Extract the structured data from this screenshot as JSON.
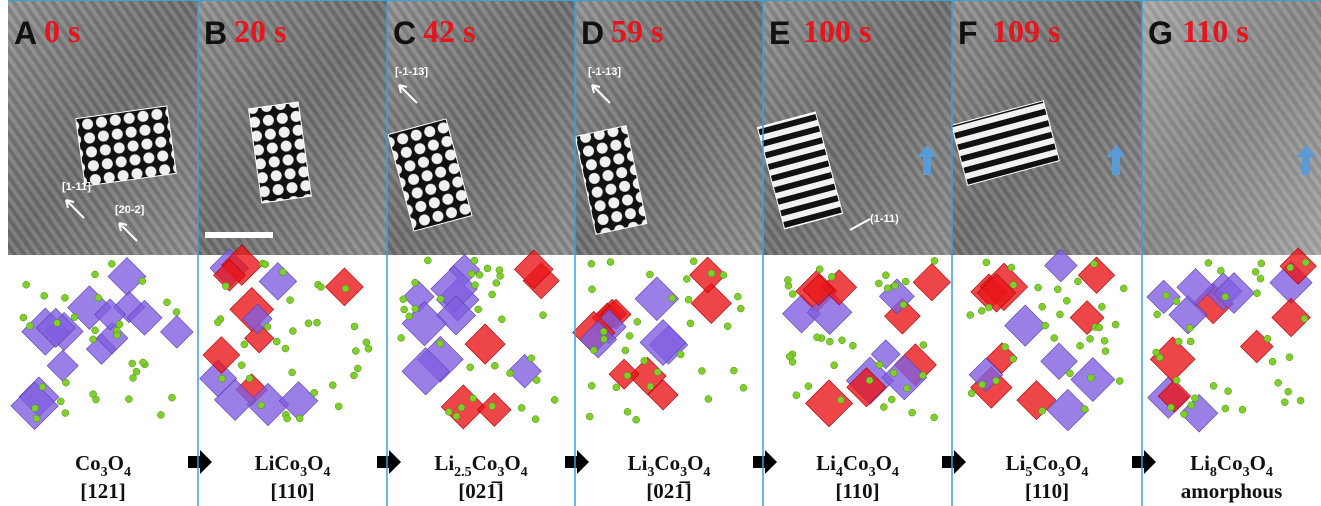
{
  "panels": [
    {
      "letter": "A",
      "time": "0 s",
      "annotations": [
        "[1-11]",
        "[20-2]"
      ],
      "formula": [
        "Co",
        "3",
        "O",
        "4"
      ],
      "direction": "[121]"
    },
    {
      "letter": "B",
      "time": "20 s",
      "annotations": [],
      "formula": [
        "LiCo",
        "3",
        "O",
        "4"
      ],
      "direction": "[110]"
    },
    {
      "letter": "C",
      "time": "42 s",
      "annotations": [
        "[-1-13]"
      ],
      "formula": [
        "Li",
        "2.5",
        "Co",
        "3",
        "O",
        "4"
      ],
      "direction": "[021̅]"
    },
    {
      "letter": "D",
      "time": "59 s",
      "annotations": [
        "[-1-13]"
      ],
      "formula": [
        "Li",
        "3",
        "Co",
        "3",
        "O",
        "4"
      ],
      "direction": "[021̅]"
    },
    {
      "letter": "E",
      "time": "100 s",
      "annotations": [
        "(1-11)"
      ],
      "formula": [
        "Li",
        "4",
        "Co",
        "3",
        "O",
        "4"
      ],
      "direction": "[110]"
    },
    {
      "letter": "F",
      "time": "109 s",
      "annotations": [],
      "formula": [
        "Li",
        "5",
        "Co",
        "3",
        "O",
        "4"
      ],
      "direction": "[110]"
    },
    {
      "letter": "G",
      "time": "110 s",
      "annotations": [],
      "formula": [
        "Li",
        "8",
        "Co",
        "3",
        "O",
        "4"
      ],
      "direction": "amorphous"
    }
  ]
}
